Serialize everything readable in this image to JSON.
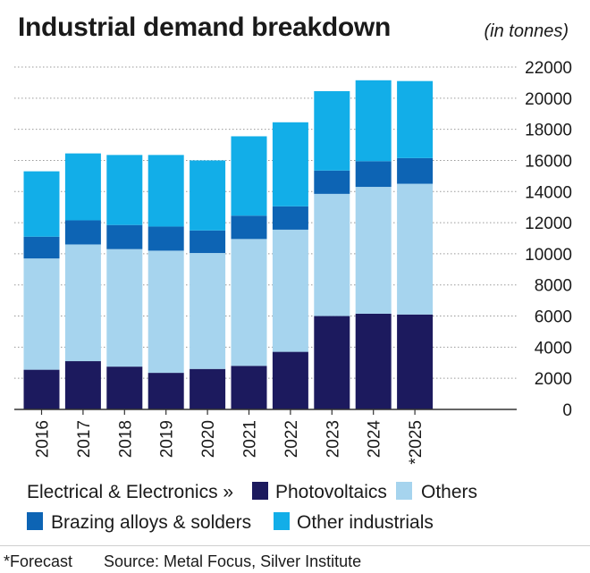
{
  "title": "Industrial demand breakdown",
  "unit_label": "(in tonnes)",
  "legend_prefix": "Electrical & Electronics »",
  "forecast_note": "*Forecast",
  "source": "Source: Metal Focus, Silver Institute",
  "colors": {
    "Photovoltaics": "#1c1a5e",
    "Others": "#a6d4ee",
    "Brazing alloys & solders": "#0d64b4",
    "Other industrials": "#12aee8",
    "grid": "#9a9a9a",
    "axis": "#333333"
  },
  "chart_data": {
    "type": "bar",
    "stacked": true,
    "categories": [
      "2016",
      "2017",
      "2018",
      "2019",
      "2020",
      "2021",
      "2022",
      "2023",
      "2024",
      "*2025"
    ],
    "series": [
      {
        "name": "Photovoltaics",
        "values": [
          2550,
          3100,
          2750,
          2350,
          2600,
          2800,
          3700,
          6000,
          6150,
          6100
        ]
      },
      {
        "name": "Others",
        "values": [
          7150,
          7500,
          7550,
          7850,
          7450,
          8150,
          7850,
          7850,
          8150,
          8400
        ]
      },
      {
        "name": "Brazing alloys & solders",
        "values": [
          1400,
          1550,
          1550,
          1550,
          1450,
          1500,
          1500,
          1500,
          1650,
          1650
        ]
      },
      {
        "name": "Other industrials",
        "values": [
          4200,
          4300,
          4500,
          4600,
          4500,
          5100,
          5400,
          5100,
          5200,
          4950
        ]
      }
    ],
    "ylim": [
      0,
      22000
    ],
    "yticks": [
      0,
      2000,
      4000,
      6000,
      8000,
      10000,
      12000,
      14000,
      16000,
      18000,
      20000,
      22000
    ],
    "grid": true,
    "legend_position": "bottom"
  }
}
